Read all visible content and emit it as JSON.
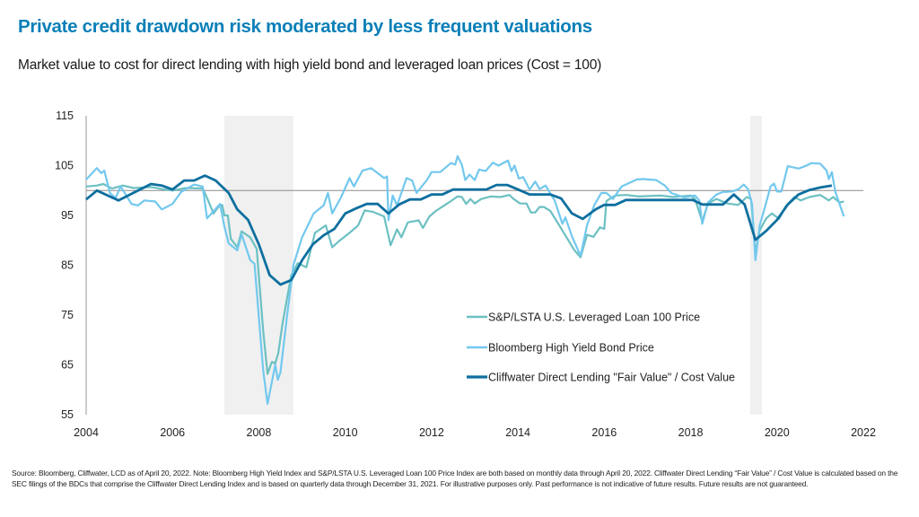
{
  "title": "Private credit drawdown risk moderated by less frequent valuations",
  "subtitle": "Market value to cost for direct lending with high yield bond and leveraged loan prices (Cost = 100)",
  "footnote": "Source: Bloomberg, Cliffwater, LCD as of April 20, 2022. Note: Bloomberg High Yield Index and S&P/LSTA U.S. Leveraged Loan 100 Price Index are both based on monthly data through April 20, 2022. Cliffwater Direct Lending “Fair Value” / Cost Value is calculated based on the SEC filings of the BDCs that comprise the Cliffwater Direct Lending Index and is based on quarterly data through December 31, 2021. For illustrative purposes only. Past performance is not indicative of future results. Future results are not guaranteed.",
  "chart_data": {
    "type": "line",
    "xlim": [
      2004,
      2022
    ],
    "ylim": [
      55,
      115
    ],
    "x_ticks": [
      "2004",
      "2006",
      "2008",
      "2010",
      "2012",
      "2014",
      "2016",
      "2018",
      "2020",
      "2022"
    ],
    "y_ticks": [
      "115",
      "105",
      "95",
      "85",
      "75",
      "65",
      "55"
    ],
    "reference_line": 100,
    "shaded_periods": [
      [
        2007.2,
        2008.8
      ],
      [
        2019.38,
        2019.65
      ]
    ],
    "legend_position": "bottom-right",
    "grid": false,
    "series": [
      {
        "name": "S&P/LSTA U.S. Leveraged Loan 100 Price",
        "color": "#6cc0c2",
        "width": 2.2,
        "x": [
          2004,
          2004.25,
          2004.4,
          2004.6,
          2004.85,
          2005.1,
          2005.5,
          2005.75,
          2006,
          2006.3,
          2006.7,
          2006.8,
          2006.95,
          2007.1,
          2007.15,
          2007.2,
          2007.28,
          2007.35,
          2007.5,
          2007.6,
          2007.8,
          2007.95,
          2008.1,
          2008.2,
          2008.3,
          2008.38,
          2008.45,
          2008.55,
          2008.75,
          2008.9,
          2009.1,
          2009.3,
          2009.55,
          2009.7,
          2009.85,
          2010.1,
          2010.3,
          2010.45,
          2010.65,
          2010.9,
          2011.05,
          2011.2,
          2011.3,
          2011.45,
          2011.7,
          2011.8,
          2011.95,
          2012.1,
          2012.4,
          2012.6,
          2012.7,
          2012.8,
          2012.9,
          2013,
          2013.15,
          2013.37,
          2013.6,
          2013.8,
          2013.9,
          2014.05,
          2014.2,
          2014.3,
          2014.4,
          2014.5,
          2014.6,
          2014.75,
          2015.05,
          2015.3,
          2015.45,
          2015.6,
          2015.75,
          2015.9,
          2016,
          2016.05,
          2016.25,
          2016.5,
          2016.8,
          2017.3,
          2017.6,
          2018,
          2018.1,
          2018.27,
          2018.4,
          2018.6,
          2018.85,
          2019.1,
          2019.3,
          2019.4,
          2019.5,
          2019.6,
          2019.75,
          2019.88,
          2020.05,
          2020.2,
          2020.4,
          2020.55,
          2020.75,
          2021,
          2021.2,
          2021.3,
          2021.45,
          2021.55
        ],
        "values": [
          100.8,
          101,
          101.3,
          100.4,
          101,
          100.5,
          100.7,
          100.3,
          100,
          100.5,
          100.4,
          98.5,
          95.4,
          97.1,
          97.1,
          95,
          95,
          90.3,
          88.6,
          91.8,
          90.6,
          88.3,
          71.8,
          63.2,
          65.6,
          65.3,
          67.4,
          73.4,
          83,
          85.4,
          84.6,
          91.5,
          93,
          88.6,
          89.8,
          91.5,
          93,
          96,
          95.7,
          94.8,
          89,
          92.2,
          90.6,
          93.6,
          94,
          92.5,
          94.8,
          95.9,
          97.6,
          98.8,
          98.7,
          97.3,
          98.3,
          97.4,
          98.3,
          98.8,
          98.7,
          99.1,
          98.3,
          97.4,
          97.4,
          95.6,
          95.6,
          96.7,
          96.7,
          95.9,
          91.7,
          88.1,
          86.6,
          91.1,
          90.7,
          92.6,
          92.3,
          97.9,
          99,
          99.1,
          98.8,
          99,
          98.7,
          99,
          98.3,
          93.8,
          97.4,
          98.3,
          97.4,
          97.1,
          98.7,
          98.3,
          87.5,
          92,
          94.4,
          95.4,
          94.3,
          96.8,
          98.7,
          98,
          98.7,
          99.1,
          98,
          98.7,
          97.6,
          97.8
        ]
      },
      {
        "name": "Bloomberg High Yield Bond Price",
        "color": "#72c8ee",
        "width": 2.2,
        "x": [
          2004,
          2004.25,
          2004.35,
          2004.42,
          2004.55,
          2004.68,
          2004.8,
          2005.05,
          2005.2,
          2005.35,
          2005.6,
          2005.75,
          2006,
          2006.2,
          2006.5,
          2006.7,
          2006.8,
          2007,
          2007.1,
          2007.2,
          2007.3,
          2007.5,
          2007.6,
          2007.8,
          2007.9,
          2008.1,
          2008.2,
          2008.38,
          2008.44,
          2008.5,
          2008.65,
          2008.8,
          2009,
          2009.27,
          2009.5,
          2009.6,
          2009.7,
          2009.9,
          2010.1,
          2010.2,
          2010.4,
          2010.6,
          2010.9,
          2010.97,
          2011.0,
          2011.1,
          2011.2,
          2011.42,
          2011.55,
          2011.65,
          2011.9,
          2012.0,
          2012.2,
          2012.45,
          2012.55,
          2012.6,
          2012.7,
          2012.78,
          2012.88,
          2013,
          2013.1,
          2013.25,
          2013.42,
          2013.55,
          2013.77,
          2013.85,
          2013.92,
          2014.02,
          2014.12,
          2014.27,
          2014.4,
          2014.5,
          2014.64,
          2014.85,
          2015.03,
          2015.1,
          2015.25,
          2015.45,
          2015.6,
          2015.77,
          2015.93,
          2016.05,
          2016.2,
          2016.4,
          2016.55,
          2016.75,
          2016.9,
          2017.2,
          2017.4,
          2017.55,
          2017.85,
          2018.1,
          2018.2,
          2018.27,
          2018.4,
          2018.6,
          2018.75,
          2018.95,
          2019.1,
          2019.23,
          2019.33,
          2019.42,
          2019.5,
          2019.6,
          2019.7,
          2019.85,
          2019.93,
          2020.0,
          2020.1,
          2020.25,
          2020.5,
          2020.65,
          2020.8,
          2021.0,
          2021.15,
          2021.2,
          2021.27,
          2021.35,
          2021.55
        ],
        "values": [
          102.2,
          104.5,
          103.5,
          104,
          99.5,
          98.5,
          100.8,
          97.3,
          97,
          98,
          97.8,
          96.2,
          97.3,
          99.7,
          101.2,
          100.8,
          94.4,
          96.3,
          97.3,
          92.8,
          89.4,
          88,
          91.2,
          86,
          85.3,
          63.8,
          57.2,
          65,
          62,
          63.5,
          74.6,
          85,
          90.6,
          95.4,
          97,
          99.5,
          95.4,
          98.6,
          102.5,
          100.8,
          104,
          104.5,
          102.5,
          102.8,
          94,
          99,
          97,
          102.5,
          102,
          99.5,
          102.2,
          103.7,
          103.7,
          105.5,
          105.2,
          106.9,
          105.2,
          102.1,
          103.2,
          102.1,
          104.2,
          103.9,
          105.6,
          105,
          106,
          103.9,
          105,
          102.4,
          102.7,
          100.2,
          101.8,
          100.3,
          101,
          98,
          93.3,
          94.6,
          90.8,
          86.9,
          93,
          97.1,
          99.5,
          99.5,
          98.3,
          100.8,
          101.4,
          102.2,
          102.3,
          102.1,
          101,
          99.5,
          98.6,
          99,
          98,
          93.3,
          97.6,
          99.2,
          99.7,
          99.8,
          100.2,
          101.2,
          100.3,
          97.3,
          86,
          93,
          96,
          100.8,
          101.4,
          99.8,
          99.8,
          104.9,
          104.4,
          104.9,
          105.5,
          105.4,
          104,
          102.3,
          103.7,
          99.8,
          94.8
        ]
      },
      {
        "name": "Cliffwater Direct Lending \"Fair Value\" / Cost Value",
        "color": "#0e6f9f",
        "width": 2.8,
        "x": [
          2004,
          2004.25,
          2004.75,
          2005.5,
          2005.75,
          2006,
          2006.27,
          2006.5,
          2006.75,
          2007,
          2007.3,
          2007.5,
          2007.75,
          2008,
          2008.25,
          2008.5,
          2008.75,
          2009,
          2009.25,
          2009.5,
          2009.75,
          2010,
          2010.25,
          2010.5,
          2010.75,
          2011,
          2011.25,
          2011.5,
          2011.75,
          2012,
          2012.25,
          2012.5,
          2013.27,
          2013.5,
          2013.75,
          2014,
          2014.27,
          2014.75,
          2015,
          2015.25,
          2015.5,
          2015.8,
          2016,
          2016.25,
          2016.5,
          2018.05,
          2018.27,
          2018.75,
          2019,
          2019.25,
          2019.5,
          2019.75,
          2020,
          2020.25,
          2020.5,
          2020.75,
          2021,
          2021.27
        ],
        "values": [
          98.2,
          100,
          98,
          101.3,
          101,
          100.2,
          102,
          102,
          103,
          102,
          99.5,
          96.2,
          94.1,
          89.2,
          83,
          81.1,
          82,
          86,
          89.2,
          91,
          92.3,
          95.4,
          96.4,
          97.3,
          97.3,
          95.4,
          97.2,
          98.2,
          98.2,
          99.2,
          99.2,
          100.2,
          100.2,
          101.1,
          101.1,
          100.2,
          99.2,
          99.2,
          98.4,
          95.4,
          94.3,
          96.2,
          97.1,
          97.1,
          98.1,
          98.1,
          97.2,
          97.2,
          99.2,
          97.2,
          90.1,
          91.9,
          94.1,
          97.2,
          99.2,
          100.1,
          100.6,
          101.0
        ]
      }
    ]
  }
}
